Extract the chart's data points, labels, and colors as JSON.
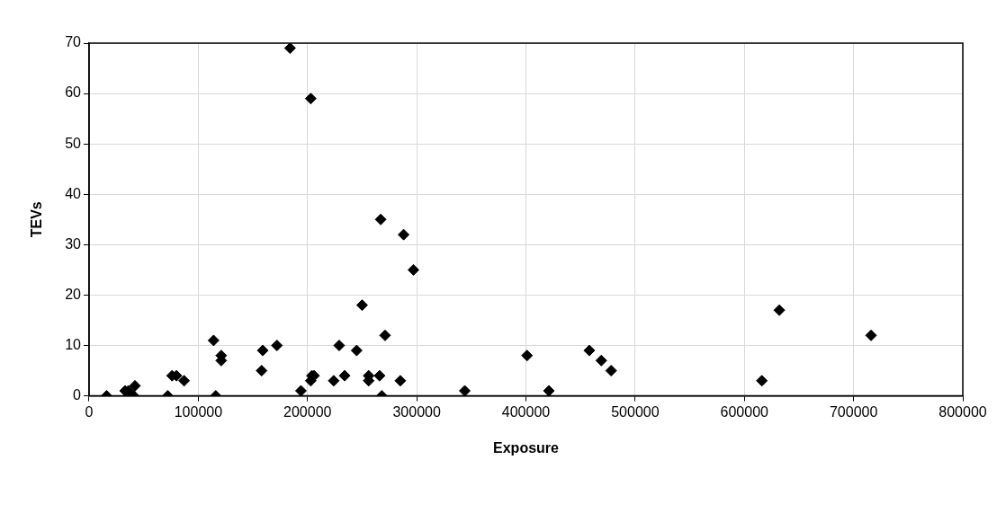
{
  "chart_data": {
    "type": "scatter",
    "xlabel": "Exposure",
    "ylabel": "TEVs",
    "marker": "diamond",
    "grid": true,
    "legend": false,
    "xlim": [
      0,
      800000
    ],
    "xticks": [
      0,
      100000,
      200000,
      300000,
      400000,
      500000,
      600000,
      700000,
      800000
    ],
    "ylim": [
      0,
      70
    ],
    "yticks": [
      0,
      10,
      20,
      30,
      40,
      50,
      60,
      70
    ],
    "series": [
      {
        "color": "#000000",
        "x": [
          16000,
          33000,
          36000,
          41000,
          42000,
          72000,
          76000,
          80000,
          87000,
          114000,
          116000,
          121000,
          121000,
          158000,
          159000,
          172000,
          184000,
          194000,
          203000,
          204000,
          206000,
          203000,
          224000,
          229000,
          234000,
          245000,
          250000,
          256000,
          256000,
          266000,
          267000,
          268000,
          271000,
          285000,
          288000,
          297000,
          344000,
          401000,
          421000,
          458000,
          469000,
          478000,
          616000,
          632000,
          716000
        ],
        "values": [
          0,
          1,
          1,
          0,
          2,
          0,
          4,
          4,
          3,
          11,
          0,
          8,
          7,
          5,
          9,
          10,
          69,
          1,
          59,
          4,
          4,
          3,
          3,
          10,
          4,
          9,
          18,
          4,
          3,
          4,
          35,
          0,
          12,
          3,
          32,
          25,
          1,
          8,
          1,
          9,
          7,
          5,
          3,
          17,
          12
        ]
      }
    ]
  }
}
